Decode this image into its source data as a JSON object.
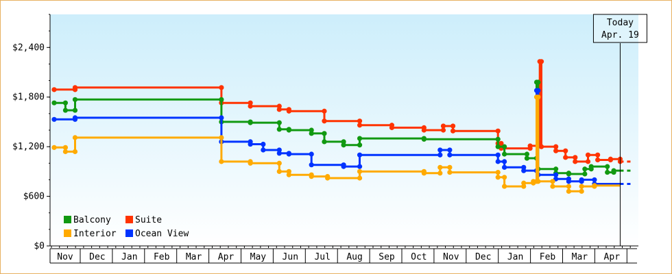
{
  "chart_data": {
    "type": "line",
    "step": true,
    "title": "",
    "xlabel": "",
    "ylabel": "",
    "ylim": [
      0,
      2800
    ],
    "y_ticks": [
      {
        "value": 0,
        "label": "$0"
      },
      {
        "value": 600,
        "label": "$600"
      },
      {
        "value": 1200,
        "label": "$1,200"
      },
      {
        "value": 1800,
        "label": "$1,800"
      },
      {
        "value": 2400,
        "label": "$2,400"
      }
    ],
    "x_unit": "month index (0 = Nov, 18 = end of Apr)",
    "xlim": [
      0,
      18
    ],
    "x_months": [
      "Nov",
      "Dec",
      "Jan",
      "Feb",
      "Mar",
      "Apr",
      "May",
      "Jun",
      "Jul",
      "Aug",
      "Sep",
      "Oct",
      "Nov",
      "Dec",
      "Jan",
      "Feb",
      "Mar",
      "Apr"
    ],
    "today": {
      "line1": "Today",
      "line2": "Apr. 19",
      "x": 17.6
    },
    "legend": {
      "placement": "bottom-left"
    },
    "background": {
      "top": "#cdeefb",
      "bottom": "#ffffff"
    },
    "series": [
      {
        "name": "Suite",
        "color": "#ff3300",
        "points": [
          [
            0,
            1890
          ],
          [
            0.65,
            1890
          ],
          [
            0.65,
            1915
          ],
          [
            1.4,
            1915
          ],
          [
            5.2,
            1915
          ],
          [
            5.2,
            1730
          ],
          [
            6.1,
            1730
          ],
          [
            6.1,
            1690
          ],
          [
            7.0,
            1690
          ],
          [
            7.0,
            1650
          ],
          [
            7.3,
            1650
          ],
          [
            7.3,
            1630
          ],
          [
            8.4,
            1630
          ],
          [
            8.4,
            1510
          ],
          [
            9.5,
            1510
          ],
          [
            9.5,
            1460
          ],
          [
            10.5,
            1460
          ],
          [
            10.5,
            1430
          ],
          [
            11.5,
            1430
          ],
          [
            11.5,
            1400
          ],
          [
            12.1,
            1400
          ],
          [
            12.1,
            1450
          ],
          [
            12.4,
            1450
          ],
          [
            12.4,
            1390
          ],
          [
            13.0,
            1390
          ],
          [
            13.8,
            1390
          ],
          [
            13.8,
            1240
          ],
          [
            13.9,
            1240
          ],
          [
            13.9,
            1180
          ],
          [
            14.8,
            1180
          ],
          [
            14.8,
            1210
          ],
          [
            15.1,
            1210
          ],
          [
            15.1,
            2230
          ],
          [
            15.15,
            2230
          ],
          [
            15.15,
            1200
          ],
          [
            15.6,
            1200
          ],
          [
            15.6,
            1150
          ],
          [
            15.9,
            1150
          ],
          [
            15.9,
            1070
          ],
          [
            16.2,
            1070
          ],
          [
            16.2,
            1020
          ],
          [
            16.6,
            1020
          ],
          [
            16.6,
            1100
          ],
          [
            16.9,
            1100
          ],
          [
            16.9,
            1040
          ],
          [
            17.3,
            1040
          ],
          [
            17.3,
            1050
          ],
          [
            17.6,
            1050
          ],
          [
            17.6,
            1020
          ]
        ],
        "projected_to": 18.0
      },
      {
        "name": "Balcony",
        "color": "#119911",
        "points": [
          [
            0,
            1730
          ],
          [
            0.35,
            1730
          ],
          [
            0.35,
            1640
          ],
          [
            0.65,
            1640
          ],
          [
            0.65,
            1770
          ],
          [
            1.4,
            1770
          ],
          [
            5.2,
            1770
          ],
          [
            5.2,
            1500
          ],
          [
            6.1,
            1500
          ],
          [
            6.1,
            1490
          ],
          [
            7.0,
            1490
          ],
          [
            7.0,
            1410
          ],
          [
            7.3,
            1410
          ],
          [
            7.3,
            1400
          ],
          [
            8.0,
            1400
          ],
          [
            8.0,
            1360
          ],
          [
            8.4,
            1360
          ],
          [
            8.4,
            1260
          ],
          [
            9.0,
            1260
          ],
          [
            9.0,
            1220
          ],
          [
            9.5,
            1220
          ],
          [
            9.5,
            1300
          ],
          [
            11.5,
            1300
          ],
          [
            11.5,
            1290
          ],
          [
            12.2,
            1290
          ],
          [
            12.2,
            1290
          ],
          [
            13.8,
            1290
          ],
          [
            13.8,
            1200
          ],
          [
            14.0,
            1200
          ],
          [
            14.0,
            1110
          ],
          [
            14.7,
            1110
          ],
          [
            14.7,
            1060
          ],
          [
            15.0,
            1060
          ],
          [
            15.0,
            1980
          ],
          [
            15.05,
            1980
          ],
          [
            15.05,
            930
          ],
          [
            15.6,
            930
          ],
          [
            15.6,
            880
          ],
          [
            16.0,
            880
          ],
          [
            16.0,
            870
          ],
          [
            16.5,
            870
          ],
          [
            16.5,
            930
          ],
          [
            16.7,
            930
          ],
          [
            16.7,
            960
          ],
          [
            17.2,
            960
          ],
          [
            17.2,
            890
          ],
          [
            17.4,
            890
          ],
          [
            17.4,
            910
          ],
          [
            17.6,
            910
          ]
        ],
        "projected_to": 18.0
      },
      {
        "name": "Ocean View",
        "color": "#0033ff",
        "points": [
          [
            0,
            1530
          ],
          [
            0.65,
            1530
          ],
          [
            0.65,
            1550
          ],
          [
            1.4,
            1550
          ],
          [
            5.2,
            1550
          ],
          [
            5.2,
            1260
          ],
          [
            6.1,
            1260
          ],
          [
            6.1,
            1230
          ],
          [
            6.5,
            1230
          ],
          [
            6.5,
            1160
          ],
          [
            7.0,
            1160
          ],
          [
            7.0,
            1120
          ],
          [
            7.3,
            1120
          ],
          [
            7.3,
            1110
          ],
          [
            8.0,
            1110
          ],
          [
            8.0,
            980
          ],
          [
            9.0,
            980
          ],
          [
            9.0,
            960
          ],
          [
            9.5,
            960
          ],
          [
            9.5,
            1100
          ],
          [
            12.0,
            1100
          ],
          [
            12.0,
            1160
          ],
          [
            12.3,
            1160
          ],
          [
            12.3,
            1100
          ],
          [
            13.0,
            1100
          ],
          [
            13.8,
            1100
          ],
          [
            13.8,
            1020
          ],
          [
            14.0,
            1020
          ],
          [
            14.0,
            950
          ],
          [
            14.6,
            950
          ],
          [
            14.6,
            910
          ],
          [
            15.0,
            910
          ],
          [
            15.0,
            1880
          ],
          [
            15.05,
            1880
          ],
          [
            15.05,
            860
          ],
          [
            15.6,
            860
          ],
          [
            15.6,
            810
          ],
          [
            16.0,
            810
          ],
          [
            16.0,
            780
          ],
          [
            16.4,
            780
          ],
          [
            16.4,
            800
          ],
          [
            16.8,
            800
          ],
          [
            16.8,
            750
          ],
          [
            17.6,
            750
          ]
        ],
        "projected_to": 18.0
      },
      {
        "name": "Interior",
        "color": "#ffaa00",
        "points": [
          [
            0,
            1190
          ],
          [
            0.35,
            1190
          ],
          [
            0.35,
            1140
          ],
          [
            0.65,
            1140
          ],
          [
            0.65,
            1310
          ],
          [
            1.4,
            1310
          ],
          [
            5.2,
            1310
          ],
          [
            5.2,
            1020
          ],
          [
            6.1,
            1020
          ],
          [
            6.1,
            1000
          ],
          [
            7.0,
            1000
          ],
          [
            7.0,
            900
          ],
          [
            7.3,
            900
          ],
          [
            7.3,
            860
          ],
          [
            8.0,
            860
          ],
          [
            8.0,
            840
          ],
          [
            8.5,
            840
          ],
          [
            8.5,
            820
          ],
          [
            9.5,
            820
          ],
          [
            9.5,
            900
          ],
          [
            11.5,
            900
          ],
          [
            11.5,
            880
          ],
          [
            12.0,
            880
          ],
          [
            12.0,
            950
          ],
          [
            12.3,
            950
          ],
          [
            12.3,
            890
          ],
          [
            12.8,
            890
          ],
          [
            13.0,
            890
          ],
          [
            13.8,
            890
          ],
          [
            13.8,
            830
          ],
          [
            14.0,
            830
          ],
          [
            14.0,
            720
          ],
          [
            14.6,
            720
          ],
          [
            14.6,
            760
          ],
          [
            14.9,
            760
          ],
          [
            14.9,
            780
          ],
          [
            15.0,
            780
          ],
          [
            15.0,
            1800
          ],
          [
            15.05,
            1800
          ],
          [
            15.05,
            780
          ],
          [
            15.5,
            780
          ],
          [
            15.5,
            720
          ],
          [
            16.0,
            720
          ],
          [
            16.0,
            660
          ],
          [
            16.4,
            660
          ],
          [
            16.4,
            720
          ],
          [
            16.8,
            720
          ],
          [
            16.8,
            730
          ],
          [
            17.6,
            730
          ]
        ],
        "projected_to": null
      }
    ]
  }
}
